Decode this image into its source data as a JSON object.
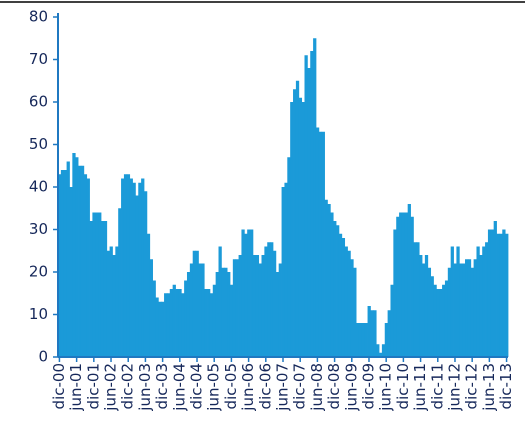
{
  "chart_data": {
    "type": "bar",
    "color": "#1b9ad8",
    "categories": [
      "dic-00",
      null,
      null,
      null,
      null,
      null,
      "jun-01",
      null,
      null,
      null,
      null,
      null,
      "dic-01",
      null,
      null,
      null,
      null,
      null,
      "jun-02",
      null,
      null,
      null,
      null,
      null,
      "dic-02",
      null,
      null,
      null,
      null,
      null,
      "jun-03",
      null,
      null,
      null,
      null,
      null,
      "dic-03",
      null,
      null,
      null,
      null,
      null,
      "jun-04",
      null,
      null,
      null,
      null,
      null,
      "dic-04",
      null,
      null,
      null,
      null,
      null,
      "jun-05",
      null,
      null,
      null,
      null,
      null,
      "dic-05",
      null,
      null,
      null,
      null,
      null,
      "jun-06",
      null,
      null,
      null,
      null,
      null,
      "dic-06",
      null,
      null,
      null,
      null,
      null,
      "jun-07",
      null,
      null,
      null,
      null,
      null,
      "dic-07",
      null,
      null,
      null,
      null,
      null,
      "jun-08",
      null,
      null,
      null,
      null,
      null,
      "dic-08",
      null,
      null,
      null,
      null,
      null,
      "jun-09",
      null,
      null,
      null,
      null,
      null,
      "dic-09",
      null,
      null,
      null,
      null,
      null,
      "jun-10",
      null,
      null,
      null,
      null,
      null,
      "dic-10",
      null,
      null,
      null,
      null,
      null,
      "jun-11",
      null,
      null,
      null,
      null,
      null,
      "dic-11",
      null,
      null,
      null,
      null,
      null,
      "jun-12",
      null,
      null,
      null,
      null,
      null,
      "dic-12",
      null,
      null,
      null,
      null,
      null,
      "jun-13",
      null,
      null,
      null,
      null,
      null,
      "dic-13"
    ],
    "values": [
      43,
      44,
      44,
      46,
      40,
      48,
      47,
      45,
      45,
      43,
      42,
      32,
      34,
      34,
      34,
      32,
      32,
      25,
      26,
      24,
      26,
      35,
      42,
      43,
      43,
      42,
      41,
      38,
      41,
      42,
      39,
      29,
      23,
      18,
      14,
      13,
      13,
      15,
      15,
      16,
      17,
      16,
      16,
      15,
      18,
      20,
      22,
      25,
      25,
      22,
      22,
      16,
      16,
      15,
      17,
      20,
      26,
      21,
      21,
      20,
      17,
      23,
      23,
      24,
      30,
      29,
      30,
      30,
      24,
      24,
      22,
      24,
      26,
      27,
      27,
      25,
      20,
      22,
      40,
      41,
      47,
      60,
      63,
      65,
      61,
      60,
      71,
      68,
      72,
      75,
      54,
      53,
      53,
      37,
      36,
      34,
      32,
      31,
      29,
      28,
      26,
      25,
      23,
      21,
      8,
      8,
      8,
      8,
      12,
      11,
      11,
      3,
      1,
      3,
      8,
      11,
      17,
      30,
      33,
      34,
      34,
      34,
      36,
      33,
      27,
      27,
      24,
      22,
      24,
      21,
      19,
      17,
      16,
      16,
      17,
      18,
      21,
      26,
      22,
      26,
      22,
      22,
      23,
      23,
      21,
      23,
      26,
      24,
      26,
      27,
      30,
      30,
      32,
      29,
      29,
      30,
      29
    ],
    "ylim": [
      0,
      80
    ],
    "yticks": [
      0,
      10,
      20,
      30,
      40,
      50,
      60,
      70,
      80
    ]
  }
}
